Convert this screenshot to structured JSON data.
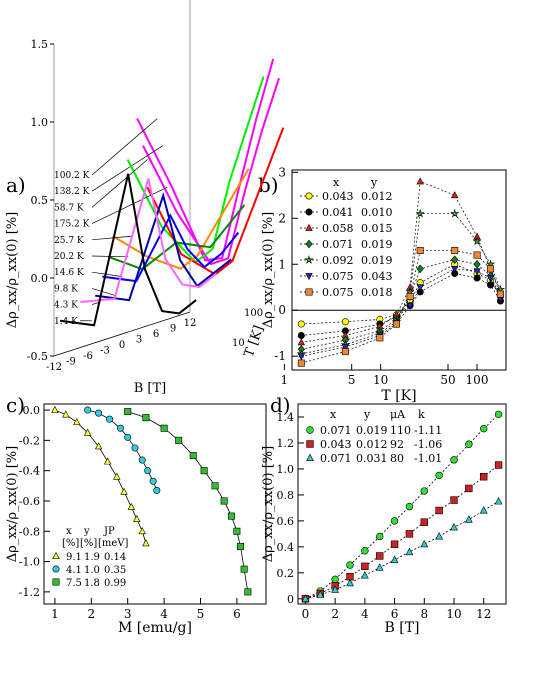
{
  "chart_data": [
    {
      "panel": "a)",
      "type": "line",
      "projection": "3d",
      "xlabel": "B [T]",
      "ylabel": "Δρ_xx/ρ_xx(0) [%]",
      "zlabel": "T [K]",
      "xticks": [
        "-12",
        "-9",
        "-6",
        "-3",
        "0",
        "3",
        "6",
        "9",
        "12"
      ],
      "yticks": [
        "-0.5",
        "0.0",
        "0.5",
        "1.0",
        "1.5"
      ],
      "zticks": [
        "10",
        "100"
      ],
      "series": [
        {
          "name": "100.2 K",
          "color": "#ff00ff",
          "x": [
            -12,
            -6,
            0,
            3,
            6,
            9,
            12
          ],
          "y": [
            1.35,
            0.85,
            0.3,
            0.28,
            0.7,
            1.1,
            1.45
          ]
        },
        {
          "name": "138.2 K",
          "color": "#ff00ff",
          "x": [
            -12,
            -6,
            0,
            3,
            6,
            9,
            12
          ],
          "y": [
            1.2,
            0.7,
            0.3,
            0.3,
            0.7,
            1.05,
            1.35
          ]
        },
        {
          "name": "58.7 K",
          "color": "#00ee00",
          "x": [
            -12,
            -6,
            0,
            3,
            6,
            9,
            12
          ],
          "y": [
            1.05,
            0.55,
            0.25,
            0.3,
            0.7,
            1.0,
            1.3
          ]
        },
        {
          "name": "175.2 K",
          "color": "#ff0000",
          "x": [
            -12,
            -6,
            0,
            3,
            6,
            9,
            12
          ],
          "y": [
            0.95,
            0.45,
            0.25,
            0.3,
            0.55,
            0.8,
            1.05
          ]
        },
        {
          "name": "25.7 K",
          "color": "#ff8800",
          "x": [
            -12,
            -6,
            0,
            3,
            6,
            9,
            12
          ],
          "y": [
            0.5,
            0.3,
            0.15,
            0.2,
            0.35,
            0.5,
            0.65
          ]
        },
        {
          "name": "20.2 K",
          "color": "#008800",
          "x": [
            -12,
            -6,
            0,
            3,
            6,
            9,
            12
          ],
          "y": [
            0.35,
            0.2,
            0.3,
            0.25,
            0.2,
            0.3,
            0.4
          ]
        },
        {
          "name": "14.6 K",
          "color": "#0000ff",
          "x": [
            -12,
            -6,
            0,
            3,
            6,
            9,
            12
          ],
          "y": [
            0.2,
            0.1,
            0.45,
            0.2,
            0.05,
            0.1,
            0.2
          ]
        },
        {
          "name": "9.8 K",
          "color": "#0000aa",
          "x": [
            -12,
            -6,
            0,
            3,
            6,
            9,
            12
          ],
          "y": [
            0.05,
            -0.05,
            0.55,
            0.1,
            -0.1,
            -0.05,
            0.0
          ]
        },
        {
          "name": "4.3 K",
          "color": "#ff66ff",
          "x": [
            -12,
            -6,
            0,
            3,
            6,
            9,
            12
          ],
          "y": [
            -0.05,
            -0.1,
            0.6,
            0.05,
            -0.15,
            -0.2,
            -0.15
          ]
        },
        {
          "name": "1.4 K",
          "color": "#000000",
          "x": [
            -12,
            -6,
            0,
            3,
            6,
            9,
            12
          ],
          "y": [
            -0.25,
            -0.35,
            0.55,
            -0.1,
            -0.4,
            -0.45,
            -0.4
          ]
        }
      ]
    },
    {
      "panel": "b)",
      "type": "scatter",
      "xscale": "log",
      "xlabel": "T [K]",
      "ylabel": "Δρ_xx/ρ_xx(0) [%]",
      "xlim": [
        1.2,
        200
      ],
      "ylim": [
        -1.3,
        3.05
      ],
      "xticks": [
        "1",
        "5",
        "10",
        "50",
        "100"
      ],
      "yticks": [
        "-1",
        "0",
        "1",
        "2",
        "3"
      ],
      "legend_header": {
        "x": "x",
        "y": "y"
      },
      "series": [
        {
          "x": "0.043",
          "y": "0.012",
          "color": "#ffff00",
          "marker": "circle",
          "t": [
            1.5,
            4.3,
            9.8,
            14.6,
            20.2,
            25.7,
            58.7,
            100.2,
            138.2,
            175.2
          ],
          "v": [
            -0.3,
            -0.25,
            -0.2,
            -0.1,
            0.2,
            0.6,
            1.0,
            0.8,
            0.65,
            0.3
          ]
        },
        {
          "x": "0.041",
          "y": "0.010",
          "color": "#000000",
          "marker": "circle",
          "t": [
            1.5,
            4.3,
            9.8,
            14.6,
            20.2,
            25.7,
            58.7,
            100.2,
            138.2,
            175.2
          ],
          "v": [
            -0.55,
            -0.45,
            -0.3,
            -0.15,
            0.1,
            0.4,
            0.8,
            0.7,
            0.55,
            0.2
          ]
        },
        {
          "x": "0.058",
          "y": "0.015",
          "color": "#dd2222",
          "marker": "triangle",
          "t": [
            1.5,
            4.3,
            9.8,
            14.6,
            20.2,
            25.7,
            58.7,
            100.2,
            138.2,
            175.2
          ],
          "v": [
            -0.7,
            -0.55,
            -0.35,
            -0.1,
            0.5,
            2.8,
            2.5,
            1.6,
            0.9,
            0.4
          ]
        },
        {
          "x": "0.071",
          "y": "0.019",
          "color": "#118811",
          "marker": "diamond",
          "t": [
            1.5,
            4.3,
            9.8,
            14.6,
            20.2,
            25.7,
            58.7,
            100.2,
            138.2,
            175.2
          ],
          "v": [
            -0.85,
            -0.65,
            -0.45,
            -0.2,
            0.3,
            0.9,
            1.1,
            1.0,
            0.75,
            0.3
          ]
        },
        {
          "x": "0.092",
          "y": "0.019",
          "color": "#33aa33",
          "marker": "star",
          "t": [
            1.5,
            4.3,
            9.8,
            14.6,
            20.2,
            25.7,
            58.7,
            100.2,
            138.2,
            175.2
          ],
          "v": [
            -0.95,
            -0.75,
            -0.5,
            -0.25,
            0.4,
            2.1,
            2.1,
            1.5,
            1.0,
            0.45
          ]
        },
        {
          "x": "0.075",
          "y": "0.043",
          "color": "#2222cc",
          "marker": "triangle-down",
          "t": [
            1.5,
            4.3,
            9.8,
            14.6,
            20.2,
            25.7,
            58.7,
            100.2,
            138.2,
            175.2
          ],
          "v": [
            -1.0,
            -0.8,
            -0.55,
            -0.3,
            0.1,
            0.5,
            0.9,
            0.85,
            0.7,
            0.25
          ]
        },
        {
          "x": "0.075",
          "y": "0.018",
          "color": "#ee8833",
          "marker": "square",
          "t": [
            1.5,
            4.3,
            9.8,
            14.6,
            20.2,
            25.7,
            58.7,
            100.2,
            138.2,
            175.2
          ],
          "v": [
            -1.15,
            -0.9,
            -0.6,
            -0.3,
            0.3,
            1.3,
            1.3,
            1.2,
            0.9,
            0.35
          ]
        }
      ]
    },
    {
      "panel": "c)",
      "type": "scatter",
      "xlabel": "M [emu/g]",
      "ylabel": "Δρ_xx/ρ_xx(0) [%]",
      "xlim": [
        0.7,
        6.8
      ],
      "ylim": [
        -1.28,
        0.04
      ],
      "xticks": [
        "1",
        "2",
        "3",
        "4",
        "5",
        "6"
      ],
      "yticks": [
        "0.0",
        "-0.2",
        "-0.4",
        "-0.6",
        "-0.8",
        "-1.0",
        "-1.2"
      ],
      "legend_header": {
        "x": "x",
        "y": "y",
        "jp": "JP",
        "x_unit": "[%]",
        "y_unit": "[%]",
        "jp_unit": "[meV]"
      },
      "series": [
        {
          "x": "9.1",
          "y": "1.9",
          "jp": "0.14",
          "color": "#ffff33",
          "marker": "triangle",
          "m": [
            1.0,
            1.3,
            1.6,
            1.9,
            2.2,
            2.45,
            2.7,
            2.9,
            3.1,
            3.25,
            3.4,
            3.5
          ],
          "v": [
            0.0,
            -0.03,
            -0.08,
            -0.15,
            -0.24,
            -0.34,
            -0.44,
            -0.54,
            -0.64,
            -0.72,
            -0.8,
            -0.88
          ]
        },
        {
          "x": "4.1",
          "y": "1.0",
          "jp": "0.35",
          "color": "#33ccdd",
          "marker": "circle",
          "m": [
            1.9,
            2.2,
            2.5,
            2.8,
            3.0,
            3.2,
            3.4,
            3.55,
            3.7,
            3.8
          ],
          "v": [
            0.0,
            -0.02,
            -0.06,
            -0.12,
            -0.18,
            -0.25,
            -0.33,
            -0.4,
            -0.47,
            -0.53
          ]
        },
        {
          "x": "7.5",
          "y": "1.8",
          "jp": "0.99",
          "color": "#33bb33",
          "marker": "square",
          "m": [
            3.0,
            3.5,
            4.0,
            4.4,
            4.8,
            5.1,
            5.4,
            5.65,
            5.85,
            6.0,
            6.1,
            6.2,
            6.3
          ],
          "v": [
            -0.01,
            -0.05,
            -0.12,
            -0.2,
            -0.3,
            -0.4,
            -0.5,
            -0.6,
            -0.7,
            -0.8,
            -0.9,
            -1.05,
            -1.2
          ]
        }
      ]
    },
    {
      "panel": "d)",
      "type": "scatter",
      "xlabel": "B [T]",
      "ylabel": "Δρ_xx/ρ_xx(0) [%]",
      "xlim": [
        -0.5,
        13.5
      ],
      "ylim": [
        -0.04,
        1.5
      ],
      "xticks": [
        "0",
        "2",
        "4",
        "6",
        "8",
        "10",
        "12"
      ],
      "yticks": [
        "0",
        "0.2",
        "0.4",
        "0.6",
        "0.8",
        "1.0",
        "1.2",
        "1.4"
      ],
      "legend_header": {
        "x": "x",
        "y": "y",
        "mu": "μA",
        "k": "k"
      },
      "series": [
        {
          "x": "0.071",
          "y": "0.019",
          "mu": "110",
          "k": "-1.11",
          "color": "#33dd33",
          "marker": "circle",
          "b": [
            0,
            1,
            2,
            3,
            4,
            5,
            6,
            7,
            8,
            9,
            10,
            11,
            12,
            13
          ],
          "v": [
            0.0,
            0.06,
            0.15,
            0.26,
            0.37,
            0.48,
            0.6,
            0.71,
            0.83,
            0.95,
            1.07,
            1.19,
            1.31,
            1.42
          ]
        },
        {
          "x": "0.043",
          "y": "0.012",
          "mu": "92",
          "k": "-1.06",
          "color": "#cc2222",
          "marker": "square",
          "b": [
            0,
            1,
            2,
            3,
            4,
            5,
            6,
            7,
            8,
            9,
            10,
            11,
            12,
            13
          ],
          "v": [
            0.0,
            0.04,
            0.1,
            0.17,
            0.25,
            0.33,
            0.42,
            0.5,
            0.59,
            0.68,
            0.76,
            0.85,
            0.94,
            1.03
          ]
        },
        {
          "x": "0.071",
          "y": "0.031",
          "mu": "80",
          "k": "-1.01",
          "color": "#33cccc",
          "marker": "triangle",
          "b": [
            0,
            1,
            2,
            3,
            4,
            5,
            6,
            7,
            8,
            9,
            10,
            11,
            12,
            13
          ],
          "v": [
            0.0,
            0.03,
            0.07,
            0.12,
            0.18,
            0.24,
            0.3,
            0.36,
            0.42,
            0.48,
            0.55,
            0.61,
            0.68,
            0.75
          ]
        }
      ]
    }
  ]
}
